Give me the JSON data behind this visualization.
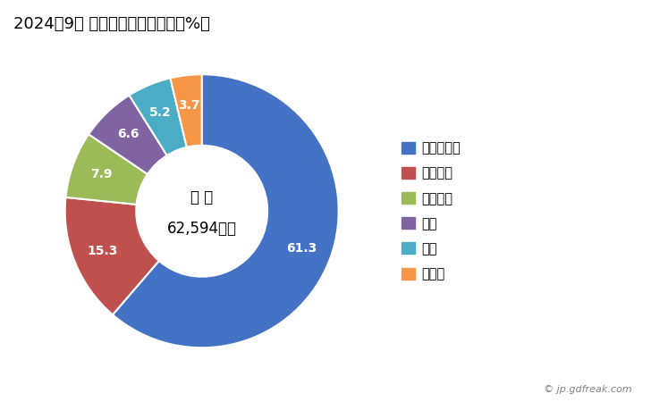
{
  "title": "2024年9月 輸出相手国のシェア（%）",
  "labels": [
    "マレーシア",
    "ベトナム",
    "スペイン",
    "台湾",
    "タイ",
    "その他"
  ],
  "values": [
    61.3,
    15.3,
    7.9,
    6.6,
    5.2,
    3.7
  ],
  "colors": [
    "#4472C4",
    "#C0504D",
    "#9BBB59",
    "#8064A2",
    "#4BACC6",
    "#F79646"
  ],
  "center_text_line1": "総 額",
  "center_text_line2": "62,594万円",
  "watermark": "© jp.gdfreak.com",
  "title_fontsize": 13,
  "legend_fontsize": 10.5
}
